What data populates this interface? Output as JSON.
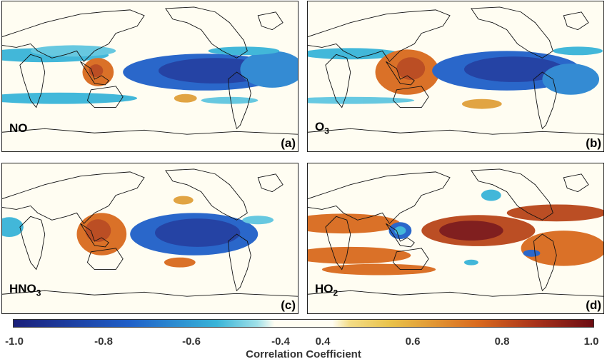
{
  "panels": [
    {
      "id": "a",
      "species": "NO",
      "sub": "",
      "label": "(a)"
    },
    {
      "id": "b",
      "species": "O",
      "sub": "3",
      "label": "(b)"
    },
    {
      "id": "c",
      "species": "HNO",
      "sub": "3",
      "label": "(c)"
    },
    {
      "id": "d",
      "species": "HO",
      "sub": "2",
      "label": "(d)"
    }
  ],
  "colorbar": {
    "title": "Correlation Coefficient",
    "ticks": [
      "-1.0",
      "-0.8",
      "-0.6",
      "-0.4",
      "0.4",
      "0.6",
      "0.8",
      "1.0"
    ],
    "colors": {
      "deep_blue": "#1a1f7a",
      "blue": "#1f5fc8",
      "cyan": "#38b4d8",
      "pale": "#fffdf2",
      "yellow": "#e9c24a",
      "orange": "#d96a1e",
      "dark_red": "#6b0c12"
    }
  }
}
